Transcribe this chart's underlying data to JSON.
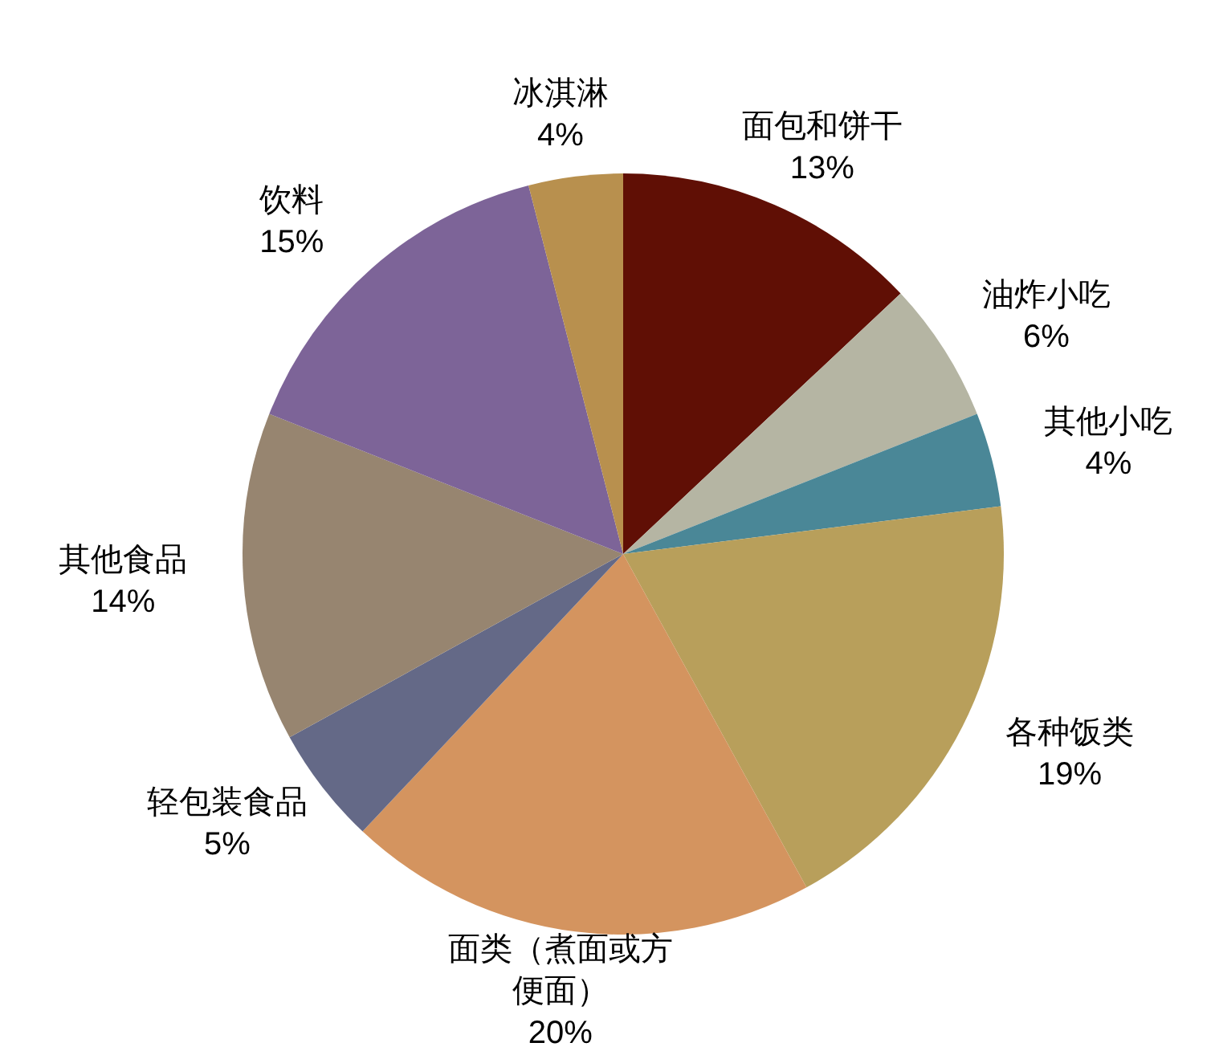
{
  "chart_data": {
    "type": "pie",
    "categories": [
      "面包和饼干",
      "油炸小吃",
      "其他小吃",
      "各种饭类",
      "面类（煮面或方便面）",
      "轻包装食品",
      "其他食品",
      "饮料",
      "冰淇淋"
    ],
    "values": [
      13,
      6,
      4,
      19,
      20,
      5,
      14,
      15,
      4
    ],
    "value_labels": [
      "13%",
      "6%",
      "4%",
      "19%",
      "20%",
      "5%",
      "14%",
      "15%",
      "4%"
    ],
    "colors": [
      "#600f05",
      "#b5b5a3",
      "#4a8797",
      "#b89f5b",
      "#d4945f",
      "#646987",
      "#978570",
      "#7d6498",
      "#b8904e"
    ],
    "legend": false
  }
}
